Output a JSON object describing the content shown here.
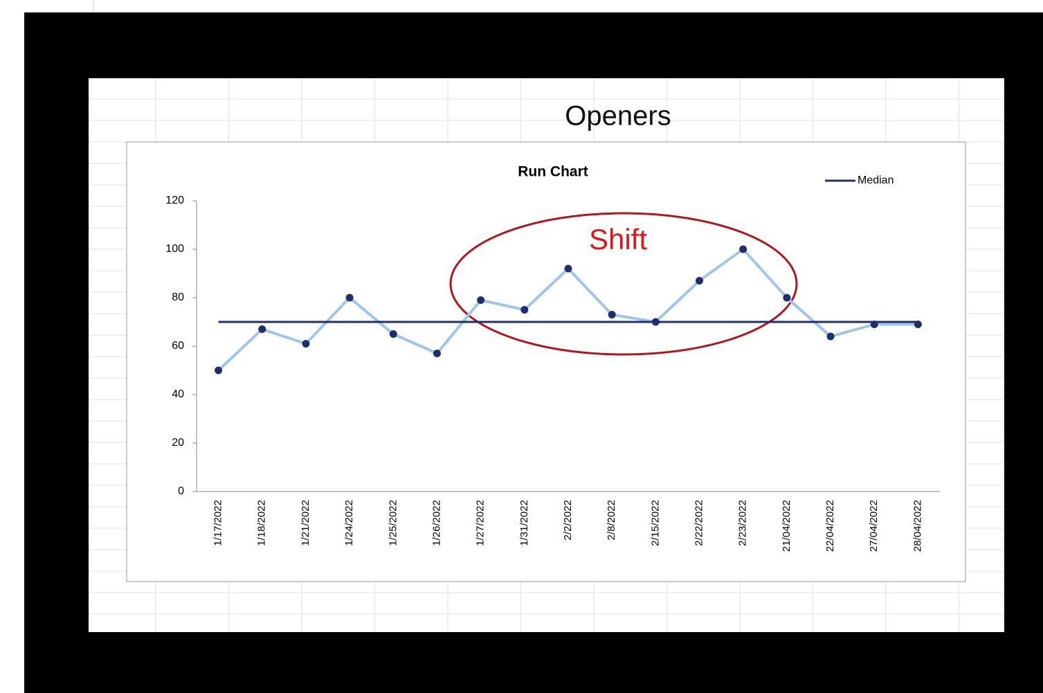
{
  "heading": "Openers",
  "chart_data": {
    "type": "line",
    "title": "Run Chart",
    "categories": [
      "1/17/2022",
      "1/18/2022",
      "1/21/2022",
      "1/24/2022",
      "1/25/2022",
      "1/26/2022",
      "1/27/2022",
      "1/31/2022",
      "2/2/2022",
      "2/8/2022",
      "2/15/2022",
      "2/22/2022",
      "2/23/2022",
      "21/04/2022",
      "22/04/2022",
      "27/04/2022",
      "28/04/2022"
    ],
    "series": [
      {
        "color": "#9fc5ec",
        "marker_color": "#1f2f6b",
        "values": [
          50,
          67,
          61,
          80,
          65,
          57,
          79,
          75,
          92,
          73,
          70,
          87,
          100,
          80,
          64,
          69,
          69
        ]
      },
      {
        "name": "Median",
        "color": "#1f2f6b",
        "values": [
          70,
          70,
          70,
          70,
          70,
          70,
          70,
          70,
          70,
          70,
          70,
          70,
          70,
          70,
          70,
          70,
          70
        ]
      }
    ],
    "ylim": [
      0,
      120
    ],
    "yticks": [
      0,
      20,
      40,
      60,
      80,
      100,
      120
    ],
    "grid": false,
    "legend": "top-right",
    "annotations": [
      {
        "text": "Shift",
        "color": "#e0161b"
      }
    ]
  }
}
